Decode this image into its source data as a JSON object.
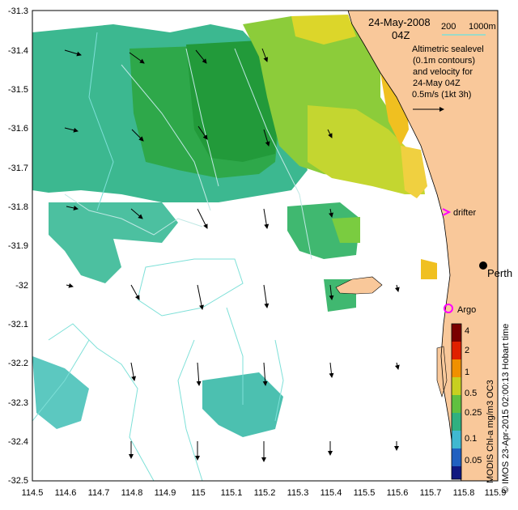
{
  "title": {
    "date": "24-May-2008",
    "time": "04Z"
  },
  "depth_legend": {
    "label_200": "200",
    "label_1000": "1000m"
  },
  "info": {
    "line1": "Altimetric sealevel",
    "line2": "(0.1m contours)",
    "line3": "and velocity for",
    "line4": "24-May 04Z",
    "scale": "0.5m/s (1kt 3h)"
  },
  "markers": {
    "drifter": "drifter",
    "perth": "Perth",
    "argo": "Argo"
  },
  "colorbar": {
    "ticks": [
      "4",
      "2",
      "1",
      "0.5",
      "0.25",
      "0.1",
      "0.05"
    ],
    "vertical_label": "MODIS Chl-a mg/m3 OC3",
    "credit": "© IMOS 23-Apr-2015 02:00:13 Hobart time"
  },
  "colors": {
    "land": "#f9c89a",
    "drifter": "#ff00ff",
    "argo": "#ff00ff",
    "depth_200": "#7ee0d8",
    "depth_1000": "#a8e8e0",
    "arrow": "#000000"
  },
  "axes": {
    "x_ticks": [
      "114.5",
      "114.6",
      "114.7",
      "114.8",
      "114.9",
      "115",
      "115.1",
      "115.2",
      "115.3",
      "115.4",
      "115.5",
      "115.6",
      "115.7",
      "115.8",
      "115.9"
    ],
    "y_ticks": [
      "-31.3",
      "-31.4",
      "-31.5",
      "-31.6",
      "-31.7",
      "-31.8",
      "-31.9",
      "-32",
      "-32.1",
      "-32.2",
      "-32.3",
      "-32.4",
      "-32.5"
    ],
    "x_range": [
      114.5,
      115.9
    ],
    "y_range": [
      -32.5,
      -31.3
    ]
  }
}
